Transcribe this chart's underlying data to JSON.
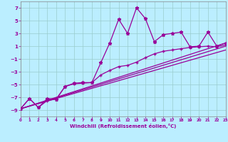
{
  "xlabel": "Windchill (Refroidissement éolien,°C)",
  "bg_color": "#bbeeff",
  "grid_color": "#99cccc",
  "line_color": "#990099",
  "x_min": 0,
  "x_max": 23,
  "y_min": -10,
  "y_max": 8,
  "y_ticks": [
    -9,
    -7,
    -5,
    -3,
    -1,
    1,
    3,
    5,
    7
  ],
  "x_ticks": [
    0,
    1,
    2,
    3,
    4,
    5,
    6,
    7,
    8,
    9,
    10,
    11,
    12,
    13,
    14,
    15,
    16,
    17,
    18,
    19,
    20,
    21,
    22,
    23
  ],
  "line1_x": [
    0,
    1,
    2,
    3,
    4,
    5,
    6,
    7,
    8,
    9,
    10,
    11,
    12,
    13,
    14,
    15,
    16,
    17,
    18,
    19,
    20,
    21,
    22,
    23
  ],
  "line1_y": [
    -8.8,
    -7.2,
    -8.6,
    -7.2,
    -7.3,
    -5.3,
    -4.8,
    -4.7,
    -4.7,
    -1.6,
    1.5,
    5.2,
    3.0,
    7.0,
    5.3,
    1.7,
    2.8,
    3.0,
    3.2,
    0.9,
    1.0,
    3.2,
    1.0,
    1.5
  ],
  "line2_x": [
    0,
    1,
    2,
    3,
    4,
    5,
    6,
    7,
    8,
    9,
    10,
    11,
    12,
    13,
    14,
    15,
    16,
    17,
    18,
    19,
    20,
    21,
    22,
    23
  ],
  "line2_y": [
    -8.8,
    -7.2,
    -8.6,
    -7.5,
    -7.3,
    -5.3,
    -4.9,
    -4.8,
    -4.7,
    -3.5,
    -2.8,
    -2.2,
    -2.0,
    -1.5,
    -0.8,
    -0.2,
    0.2,
    0.4,
    0.6,
    0.8,
    0.9,
    1.0,
    0.9,
    1.2
  ],
  "line3_x": [
    0,
    23
  ],
  "line3_y": [
    -8.8,
    1.5
  ],
  "line4_x": [
    0,
    23
  ],
  "line4_y": [
    -8.8,
    1.0
  ],
  "line5_x": [
    0,
    23
  ],
  "line5_y": [
    -8.8,
    0.4
  ]
}
